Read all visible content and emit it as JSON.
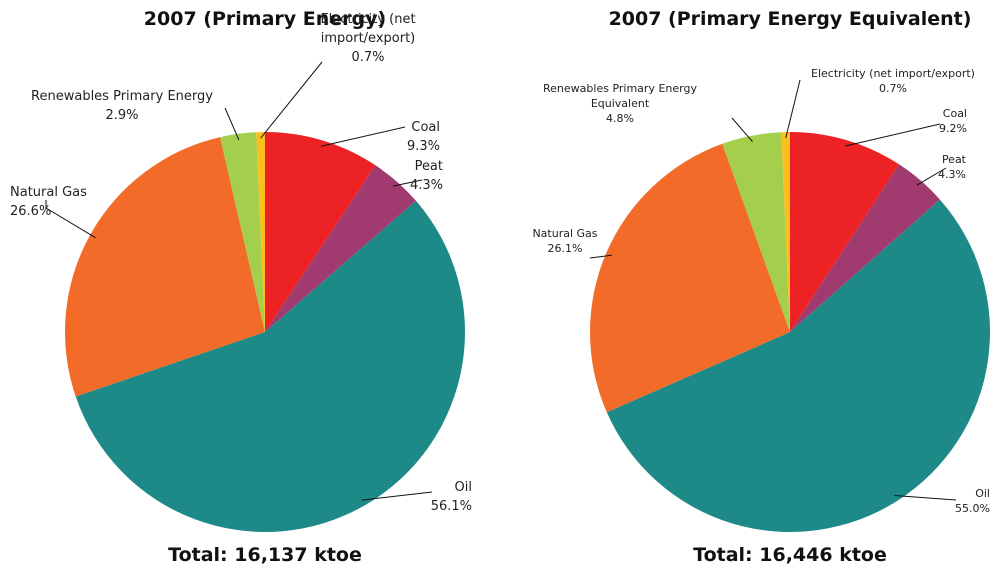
{
  "chart_data": [
    {
      "type": "pie",
      "title": "2007 (Primary Energy)",
      "categories": [
        "Coal",
        "Peat",
        "Oil",
        "Natural Gas",
        "Renewables Primary Energy",
        "Electricity (net import/export)"
      ],
      "values": [
        9.3,
        4.3,
        56.1,
        26.6,
        2.9,
        0.7
      ],
      "value_labels": [
        "9.3%",
        "4.3%",
        "56.1%",
        "26.6%",
        "2.9%",
        "0.7%"
      ],
      "colors": [
        "#ed2224",
        "#a03a6f",
        "#1e8a87",
        "#f26b29",
        "#a3cf4d",
        "#fcc01c"
      ],
      "total": "Total: 16,137 ktoe"
    },
    {
      "type": "pie",
      "title": "2007 (Primary Energy Equivalent)",
      "categories": [
        "Coal",
        "Peat",
        "Oil",
        "Natural Gas",
        "Renewables Primary Energy Equivalent",
        "Electricity (net import/export)"
      ],
      "values": [
        9.2,
        4.3,
        55.0,
        26.1,
        4.8,
        0.7
      ],
      "value_labels": [
        "9.2%",
        "4.3%",
        "55.0%",
        "26.1%",
        "4.8%",
        "0.7%"
      ],
      "colors": [
        "#ed2224",
        "#a03a6f",
        "#1e8a87",
        "#f26b29",
        "#a3cf4d",
        "#fcc01c"
      ],
      "total": "Total: 16,446 ktoe"
    }
  ]
}
